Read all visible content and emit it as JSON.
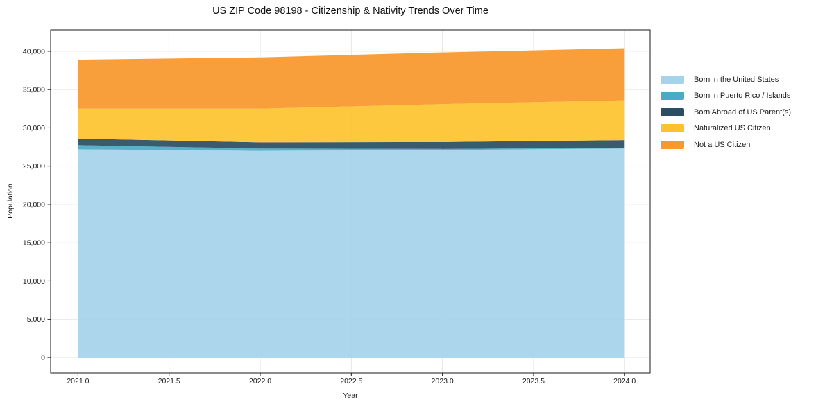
{
  "figure": {
    "background": "#ffffff"
  },
  "chart_data": {
    "type": "area",
    "stacked": true,
    "title": "US ZIP Code 98198 - Citizenship & Nativity Trends Over Time",
    "xlabel": "Year",
    "ylabel": "Population",
    "x": [
      2021,
      2022,
      2023,
      2024
    ],
    "series": [
      {
        "name": "Born in the United States",
        "color": "#a5d3e9",
        "values": [
          27200,
          27000,
          27100,
          27300
        ]
      },
      {
        "name": "Born in Puerto Rico / Islands",
        "color": "#4aabc7",
        "values": [
          550,
          300,
          150,
          100
        ]
      },
      {
        "name": "Born Abroad of US Parent(s)",
        "color": "#2b4e63",
        "values": [
          850,
          800,
          900,
          1000
        ]
      },
      {
        "name": "Naturalized US Citizen",
        "color": "#fdc32f",
        "values": [
          3900,
          4400,
          4950,
          5200
        ]
      },
      {
        "name": "Not a US Citizen",
        "color": "#f8982d",
        "values": [
          6400,
          6700,
          6750,
          6800
        ]
      }
    ],
    "totals": [
      38900,
      39200,
      39850,
      40400
    ],
    "xlim": [
      2020.85,
      2024.14
    ],
    "ylim": [
      -2000,
      42800
    ],
    "xticks": {
      "values": [
        2021.0,
        2021.5,
        2022.0,
        2022.5,
        2023.0,
        2023.5,
        2024.0
      ],
      "labels": [
        "2021.0",
        "2021.5",
        "2022.0",
        "2022.5",
        "2023.0",
        "2023.5",
        "2024.0"
      ]
    },
    "yticks": {
      "values": [
        0,
        5000,
        10000,
        15000,
        20000,
        25000,
        30000,
        35000,
        40000
      ],
      "labels": [
        "0",
        "5,000",
        "10,000",
        "15,000",
        "20,000",
        "25,000",
        "30,000",
        "35,000",
        "40,000"
      ]
    },
    "grid": true,
    "grid_color": "#e4e4e4",
    "axis_color": "#1a1a1a",
    "legend_position": "right",
    "legend": [
      "Born in the United States",
      "Born in Puerto Rico / Islands",
      "Born Abroad of US Parent(s)",
      "Naturalized US Citizen",
      "Not a US Citizen"
    ]
  }
}
